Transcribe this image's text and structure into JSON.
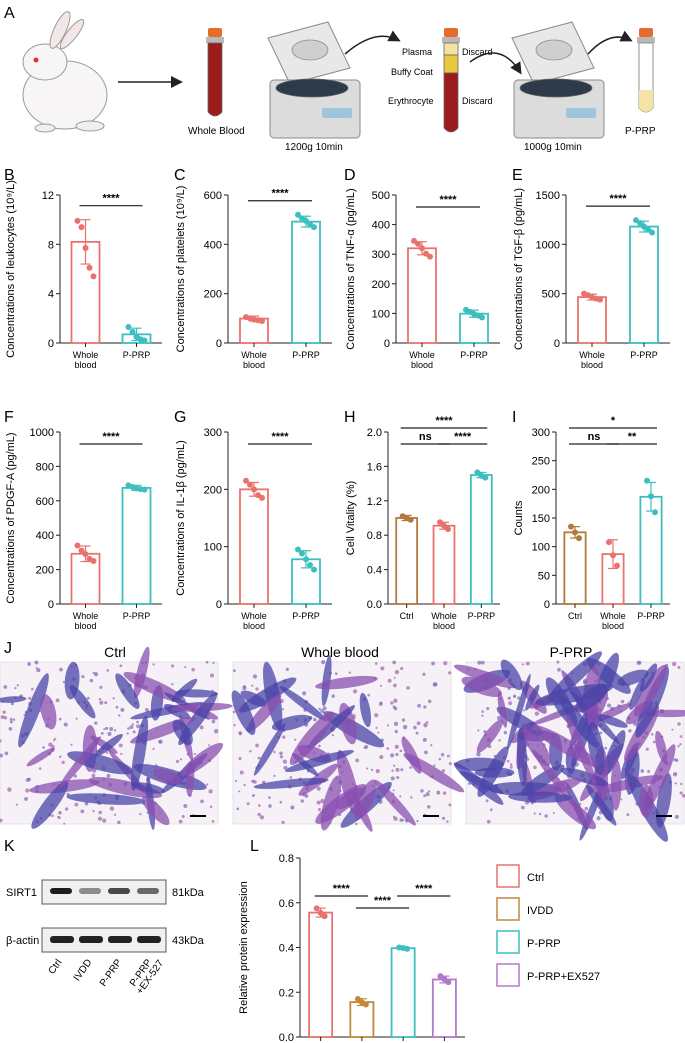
{
  "figure": {
    "panel_letters": [
      "A",
      "B",
      "C",
      "D",
      "E",
      "F",
      "G",
      "H",
      "I",
      "J",
      "K",
      "L"
    ],
    "colors": {
      "ctrl": "#e8736e",
      "whole": "#e8736e",
      "prp": "#3dbfc0",
      "ivdd": "#c08a3a",
      "brown": "#b07a3a",
      "exo": "#b07ac8",
      "blood": "#9b1c1c",
      "plasma": "#f3e4a6",
      "buffy": "#e8c840",
      "cap": "#e76b2a"
    }
  },
  "panelA": {
    "whole_blood": "Whole Blood",
    "spin1": "1200g 10min",
    "spin2": "1000g 10min",
    "plasma": "Plasma",
    "buffy": "Buffy Coat",
    "erythrocyte": "Erythrocyte",
    "discard1": "Discard",
    "discard2": "Discard",
    "prp": "P-PRP"
  },
  "panelJ": {
    "titles": [
      "Ctrl",
      "Whole blood",
      "P-PRP"
    ]
  },
  "panelK": {
    "rows": [
      "SIRT1",
      "β-actin"
    ],
    "kda": [
      "81kDa",
      "43kDa"
    ],
    "lanes": [
      "Ctrl",
      "IVDD",
      "P-PRP",
      "P-PRP\n+EX-527"
    ]
  },
  "panelL_legend": [
    "Ctrl",
    "IVDD",
    "P-PRP",
    "P-PRP+EX527"
  ],
  "chart_data": [
    {
      "panel": "B",
      "type": "bar",
      "ylabel": "Concentrations of leukocytes (10⁹/L)",
      "categories": [
        "Whole\nblood",
        "P-PRP"
      ],
      "values": [
        8.2,
        0.7
      ],
      "err": [
        1.8,
        0.5
      ],
      "points": [
        [
          9.9,
          9.4,
          7.7,
          6.1,
          5.4
        ],
        [
          1.3,
          0.9,
          0.5,
          0.3,
          0.2
        ]
      ],
      "ylim": [
        0,
        12
      ],
      "yticks": [
        0,
        4,
        8,
        12
      ],
      "colors": [
        "whole",
        "prp"
      ],
      "sig": [
        {
          "a": 0,
          "b": 1,
          "t": "****",
          "lvl": 0
        }
      ]
    },
    {
      "panel": "C",
      "type": "bar",
      "ylabel": "Concentrations of platelets (10⁹/L)",
      "categories": [
        "Whole\nblood",
        "P-PRP"
      ],
      "values": [
        99,
        492
      ],
      "err": [
        10,
        22
      ],
      "points": [
        [
          105,
          100,
          95,
          92,
          89
        ],
        [
          520,
          505,
          495,
          482,
          470
        ]
      ],
      "ylim": [
        0,
        600
      ],
      "yticks": [
        0,
        200,
        400,
        600
      ],
      "colors": [
        "whole",
        "prp"
      ],
      "sig": [
        {
          "a": 0,
          "b": 1,
          "t": "****",
          "lvl": 0
        }
      ]
    },
    {
      "panel": "D",
      "type": "bar",
      "ylabel": "Concentrations of TNF-α (pg/mL)",
      "categories": [
        "Whole\nblood",
        "P-PRP"
      ],
      "values": [
        320,
        99
      ],
      "err": [
        22,
        12
      ],
      "points": [
        [
          345,
          335,
          320,
          302,
          292
        ],
        [
          112,
          105,
          98,
          93,
          86
        ]
      ],
      "ylim": [
        0,
        500
      ],
      "yticks": [
        0,
        100,
        200,
        300,
        400,
        500
      ],
      "colors": [
        "whole",
        "prp"
      ],
      "sig": [
        {
          "a": 0,
          "b": 1,
          "t": "****",
          "lvl": 0
        }
      ]
    },
    {
      "panel": "E",
      "type": "bar",
      "ylabel": "Concentrations of TGF-β (pg/mL)",
      "categories": [
        "Whole\nblood",
        "P-PRP"
      ],
      "values": [
        465,
        1180
      ],
      "err": [
        30,
        55
      ],
      "points": [
        [
          500,
          485,
          465,
          450,
          440
        ],
        [
          1245,
          1215,
          1180,
          1150,
          1120
        ]
      ],
      "ylim": [
        0,
        1500
      ],
      "yticks": [
        0,
        500,
        1000,
        1500
      ],
      "colors": [
        "whole",
        "prp"
      ],
      "sig": [
        {
          "a": 0,
          "b": 1,
          "t": "****",
          "lvl": 0
        }
      ]
    },
    {
      "panel": "F",
      "type": "bar",
      "ylabel": "Concentrations of PDGF-A (pg/mL)",
      "categories": [
        "Whole\nblood",
        "P-PRP"
      ],
      "values": [
        292,
        675
      ],
      "err": [
        45,
        15
      ],
      "points": [
        [
          340,
          310,
          290,
          262,
          250
        ],
        [
          690,
          680,
          672,
          668,
          665
        ]
      ],
      "ylim": [
        0,
        1000
      ],
      "yticks": [
        0,
        200,
        400,
        600,
        800,
        1000
      ],
      "colors": [
        "whole",
        "prp"
      ],
      "sig": [
        {
          "a": 0,
          "b": 1,
          "t": "****",
          "lvl": 0
        }
      ]
    },
    {
      "panel": "G",
      "type": "bar",
      "ylabel": "Concentrations of IL-1β (pg/mL)",
      "categories": [
        "Whole\nblood",
        "P-PRP"
      ],
      "values": [
        200,
        78
      ],
      "err": [
        12,
        15
      ],
      "points": [
        [
          215,
          208,
          200,
          190,
          185
        ],
        [
          95,
          88,
          78,
          68,
          60
        ]
      ],
      "ylim": [
        0,
        300
      ],
      "yticks": [
        0,
        100,
        200,
        300
      ],
      "colors": [
        "whole",
        "prp"
      ],
      "sig": [
        {
          "a": 0,
          "b": 1,
          "t": "****",
          "lvl": 0
        }
      ]
    },
    {
      "panel": "H",
      "type": "bar",
      "ylabel": "Cell Vitality  (%)",
      "categories": [
        "Ctrl",
        "Whole\nblood",
        "P-PRP"
      ],
      "values": [
        1.0,
        0.91,
        1.5
      ],
      "err": [
        0.03,
        0.04,
        0.03
      ],
      "points": [
        [
          1.02,
          1.0,
          0.98
        ],
        [
          0.95,
          0.91,
          0.87
        ],
        [
          1.53,
          1.49,
          1.47
        ]
      ],
      "ylim": [
        0,
        2.0
      ],
      "yticks": [
        0,
        0.4,
        0.8,
        1.2,
        1.6,
        2.0
      ],
      "decimals": 1,
      "colors": [
        "brown",
        "whole",
        "prp"
      ],
      "sig": [
        {
          "a": 0,
          "b": 1,
          "t": "ns",
          "lvl": 0
        },
        {
          "a": 1,
          "b": 2,
          "t": "****",
          "lvl": 0
        },
        {
          "a": 0,
          "b": 2,
          "t": "****",
          "lvl": 1
        }
      ]
    },
    {
      "panel": "I",
      "type": "bar",
      "ylabel": "Counts",
      "categories": [
        "Ctrl",
        "Whole\nblood",
        "P-PRP"
      ],
      "values": [
        125,
        87,
        187
      ],
      "err": [
        10,
        25,
        25
      ],
      "points": [
        [
          135,
          125,
          115
        ],
        [
          108,
          85,
          67
        ],
        [
          215,
          188,
          160
        ]
      ],
      "ylim": [
        0,
        300
      ],
      "yticks": [
        0,
        50,
        100,
        150,
        200,
        250,
        300
      ],
      "colors": [
        "brown",
        "whole",
        "prp"
      ],
      "sig": [
        {
          "a": 0,
          "b": 1,
          "t": "ns",
          "lvl": 0
        },
        {
          "a": 1,
          "b": 2,
          "t": "**",
          "lvl": 0
        },
        {
          "a": 0,
          "b": 2,
          "t": "*",
          "lvl": 1
        }
      ]
    },
    {
      "panel": "L",
      "type": "bar",
      "ylabel": "Relative protein expression",
      "categories": [
        "",
        "",
        "",
        ""
      ],
      "values": [
        0.556,
        0.156,
        0.397,
        0.257
      ],
      "err": [
        0.02,
        0.015,
        0.005,
        0.015
      ],
      "points": [
        [
          0.575,
          0.555,
          0.54
        ],
        [
          0.17,
          0.155,
          0.145
        ],
        [
          0.4,
          0.398,
          0.394
        ],
        [
          0.272,
          0.258,
          0.245
        ]
      ],
      "ylim": [
        0,
        0.8
      ],
      "yticks": [
        0,
        0.2,
        0.4,
        0.6,
        0.8
      ],
      "decimals": 1,
      "colors": [
        "ctrl",
        "ivdd",
        "prp",
        "exo"
      ],
      "sig": [
        {
          "a": 0,
          "b": 1,
          "t": "****",
          "lvl": 1
        },
        {
          "a": 1,
          "b": 2,
          "t": "****",
          "lvl": 0
        },
        {
          "a": 2,
          "b": 3,
          "t": "****",
          "lvl": 1
        }
      ]
    }
  ]
}
